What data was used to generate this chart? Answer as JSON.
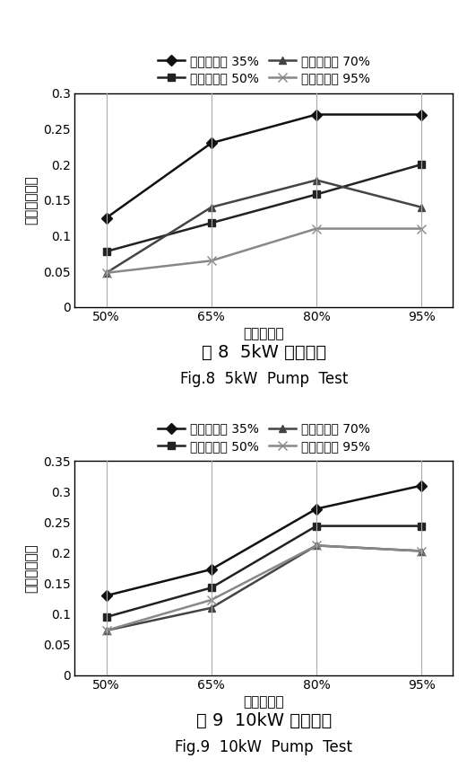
{
  "x_labels": [
    "50%",
    "65%",
    "80%",
    "95%"
  ],
  "x_values": [
    0,
    1,
    2,
    3
  ],
  "chart1": {
    "title_cn": "图 8  5kW 水泵试验",
    "title_en": "Fig.8  5kW  Pump  Test",
    "ylabel": "散热能力系数",
    "xlabel": "风扇占空比",
    "ylim": [
      0,
      0.3
    ],
    "yticks": [
      0,
      0.05,
      0.1,
      0.15,
      0.2,
      0.25,
      0.3
    ],
    "series": [
      {
        "label": "水泵占空比 35%",
        "values": [
          0.125,
          0.23,
          0.27,
          0.27
        ],
        "color": "#111111",
        "marker": "D",
        "linewidth": 1.8,
        "markersize": 6
      },
      {
        "label": "水泵占空比 50%",
        "values": [
          0.078,
          0.118,
          0.158,
          0.2
        ],
        "color": "#222222",
        "marker": "s",
        "linewidth": 1.8,
        "markersize": 6
      },
      {
        "label": "水泵占空比 70%",
        "values": [
          0.048,
          0.14,
          0.178,
          0.14
        ],
        "color": "#444444",
        "marker": "^",
        "linewidth": 1.8,
        "markersize": 6
      },
      {
        "label": "水泵占空比 95%",
        "values": [
          0.048,
          0.065,
          0.11,
          0.11
        ],
        "color": "#888888",
        "marker": "x",
        "linewidth": 1.8,
        "markersize": 7
      }
    ]
  },
  "chart2": {
    "title_cn": "图 9  10kW 水泵试验",
    "title_en": "Fig.9  10kW  Pump  Test",
    "ylabel": "散热能力系数",
    "xlabel": "风扇占空比",
    "ylim": [
      0,
      0.35
    ],
    "yticks": [
      0,
      0.05,
      0.1,
      0.15,
      0.2,
      0.25,
      0.3,
      0.35
    ],
    "series": [
      {
        "label": "水泵占空比 35%",
        "values": [
          0.13,
          0.173,
          0.272,
          0.31
        ],
        "color": "#111111",
        "marker": "D",
        "linewidth": 1.8,
        "markersize": 6
      },
      {
        "label": "水泵占空比 50%",
        "values": [
          0.095,
          0.143,
          0.244,
          0.244
        ],
        "color": "#222222",
        "marker": "s",
        "linewidth": 1.8,
        "markersize": 6
      },
      {
        "label": "水泵占空比 70%",
        "values": [
          0.073,
          0.11,
          0.212,
          0.203
        ],
        "color": "#444444",
        "marker": "^",
        "linewidth": 1.8,
        "markersize": 6
      },
      {
        "label": "水泵占空比 95%",
        "values": [
          0.073,
          0.123,
          0.212,
          0.203
        ],
        "color": "#888888",
        "marker": "x",
        "linewidth": 1.8,
        "markersize": 7
      }
    ]
  },
  "legend_ncol": 2,
  "background_color": "#ffffff",
  "grid_color": "#aaaaaa",
  "font_size_label": 11,
  "font_size_tick": 10,
  "font_size_legend": 10,
  "font_size_title_cn": 14,
  "font_size_title_en": 12
}
